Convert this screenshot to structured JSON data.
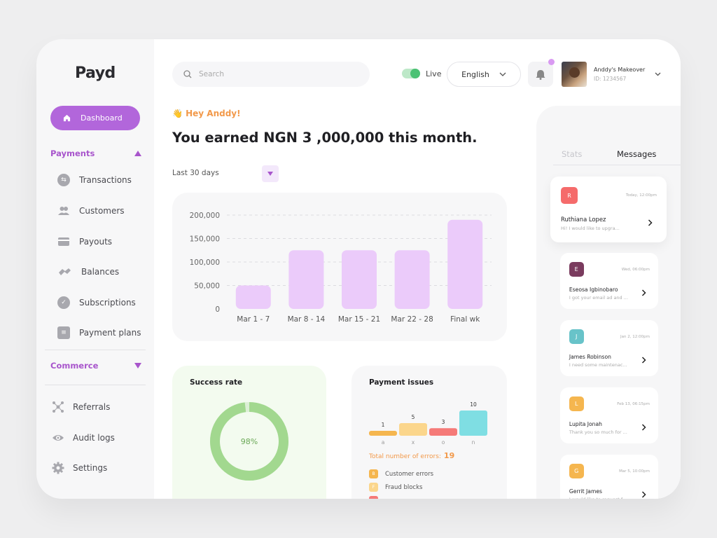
{
  "brand": {
    "logo": "Payd",
    "accent": "#b266db"
  },
  "sidebar": {
    "dashboard_label": "Dashboard",
    "payments_label": "Payments",
    "payments_items": [
      {
        "label": "Transactions",
        "icon": "transactions-icon"
      },
      {
        "label": "Customers",
        "icon": "customers-icon"
      },
      {
        "label": "Payouts",
        "icon": "card-icon"
      },
      {
        "label": "Balances",
        "icon": "balances-icon"
      },
      {
        "label": "Subscriptions",
        "icon": "subscriptions-icon"
      },
      {
        "label": "Payment plans",
        "icon": "plans-icon"
      }
    ],
    "commerce_label": "Commerce",
    "other_items": [
      {
        "label": "Referrals",
        "icon": "referrals-icon"
      },
      {
        "label": "Audit logs",
        "icon": "eye-icon"
      },
      {
        "label": "Settings",
        "icon": "gear-icon"
      }
    ]
  },
  "header": {
    "search_placeholder": "Search",
    "live_label": "Live",
    "language": "English",
    "profile_name": "Anddy's Makeover",
    "profile_id": "ID: 1234567"
  },
  "main": {
    "greeting": "👋 Hey Anddy!",
    "headline": "You earned NGN 3 ,000,000 this month.",
    "range_label": "Last 30 days"
  },
  "chart_data": [
    {
      "type": "bar",
      "categories": [
        "Mar 1 - 7",
        "Mar 8 - 14",
        "Mar 15 - 21",
        "Mar 22 - 28",
        "Final wk"
      ],
      "values": [
        50000,
        125000,
        125000,
        125000,
        190000
      ],
      "ylim": [
        0,
        200000
      ],
      "yticks": [
        "200,000",
        "150,000",
        "100,000",
        "50,000",
        "0"
      ],
      "color": "#ebcbfa",
      "grid": true
    },
    {
      "type": "pie",
      "title": "Success rate",
      "center_label": "98%",
      "value": 0.98,
      "color": "#a2d88f"
    },
    {
      "type": "bar",
      "title": "Payment issues",
      "categories": [
        "a",
        "x",
        "o",
        "n"
      ],
      "values": [
        1,
        5,
        3,
        10
      ],
      "colors": [
        "#f5b64f",
        "#fbd68c",
        "#f57a78",
        "#7fdee3"
      ]
    }
  ],
  "issues": {
    "total_label": "Total number of errors:",
    "total_value": "19",
    "legend": [
      {
        "label": "Customer errors",
        "color": "#f5b64f",
        "mark": "B"
      },
      {
        "label": "Fraud blocks",
        "color": "#fbd68c",
        "mark": "F"
      },
      {
        "label": "",
        "color": "#f57a78",
        "mark": ""
      }
    ]
  },
  "messages_panel": {
    "tab_stats": "Stats",
    "tab_messages": "Messages",
    "messages": [
      {
        "initial": "R",
        "name": "Ruthiana Lopez",
        "time": "Today, 12:00pm",
        "preview": "Hi! I would like to upgra...",
        "color": "#f56b6b"
      },
      {
        "initial": "E",
        "name": "Eseosa Igbinobaro",
        "time": "Wed, 06:00pm",
        "preview": "I got your email ad and ...",
        "color": "#7a3b5e"
      },
      {
        "initial": "J",
        "name": "James Robinson",
        "time": "Jan 2, 12:00pm",
        "preview": "I need some maintenac...",
        "color": "#68c3c9"
      },
      {
        "initial": "L",
        "name": "Lupita Jonah",
        "time": "Feb 13, 06:15pm",
        "preview": "Thank you so much for ...",
        "color": "#f5b64f"
      },
      {
        "initial": "G",
        "name": "Gerrit James",
        "time": "Mar 5, 10:00pm",
        "preview": "I would like to request f...",
        "color": "#f5b64f"
      }
    ]
  }
}
